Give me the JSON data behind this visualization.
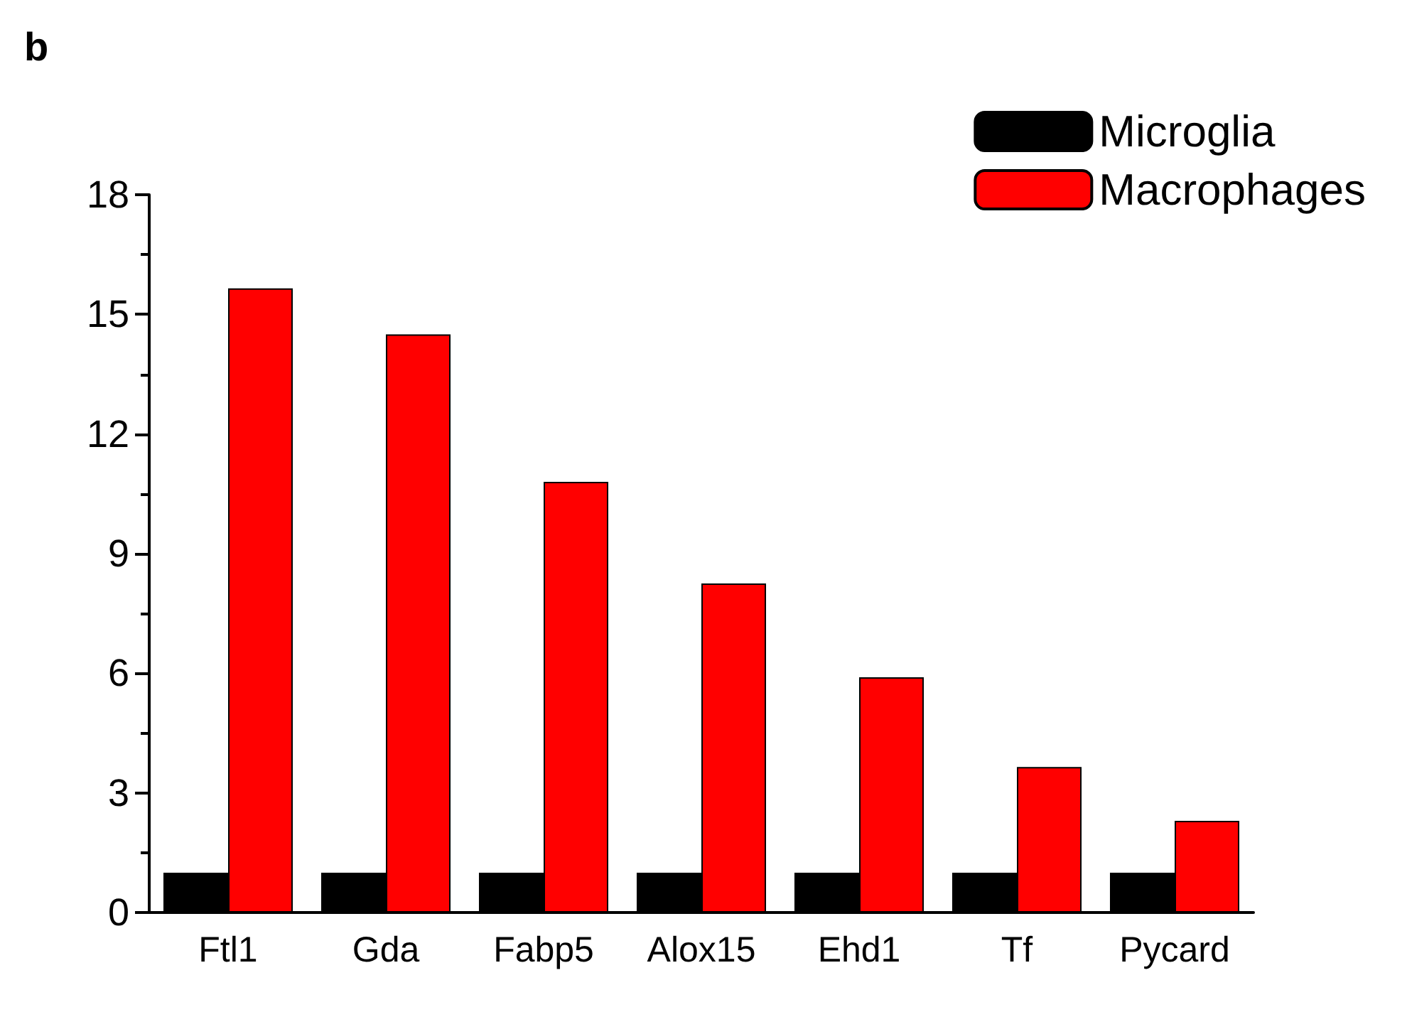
{
  "chart_data": {
    "type": "bar",
    "title": "b",
    "categories": [
      "Ftl1",
      "Gda",
      "Fabp5",
      "Alox15",
      "Ehd1",
      "Tf",
      "Pycard"
    ],
    "series": [
      {
        "name": "Microglia",
        "color": "#000000",
        "values": [
          1,
          1,
          1,
          1,
          1,
          1,
          1
        ]
      },
      {
        "name": "Macrophages",
        "color": "#ff0000",
        "values": [
          15.65,
          14.5,
          10.8,
          8.25,
          5.9,
          3.65,
          2.3
        ]
      }
    ],
    "ylim": [
      0,
      18
    ],
    "yticks": [
      0,
      3,
      6,
      9,
      12,
      15,
      18
    ],
    "grid": false,
    "legend": "top right"
  }
}
